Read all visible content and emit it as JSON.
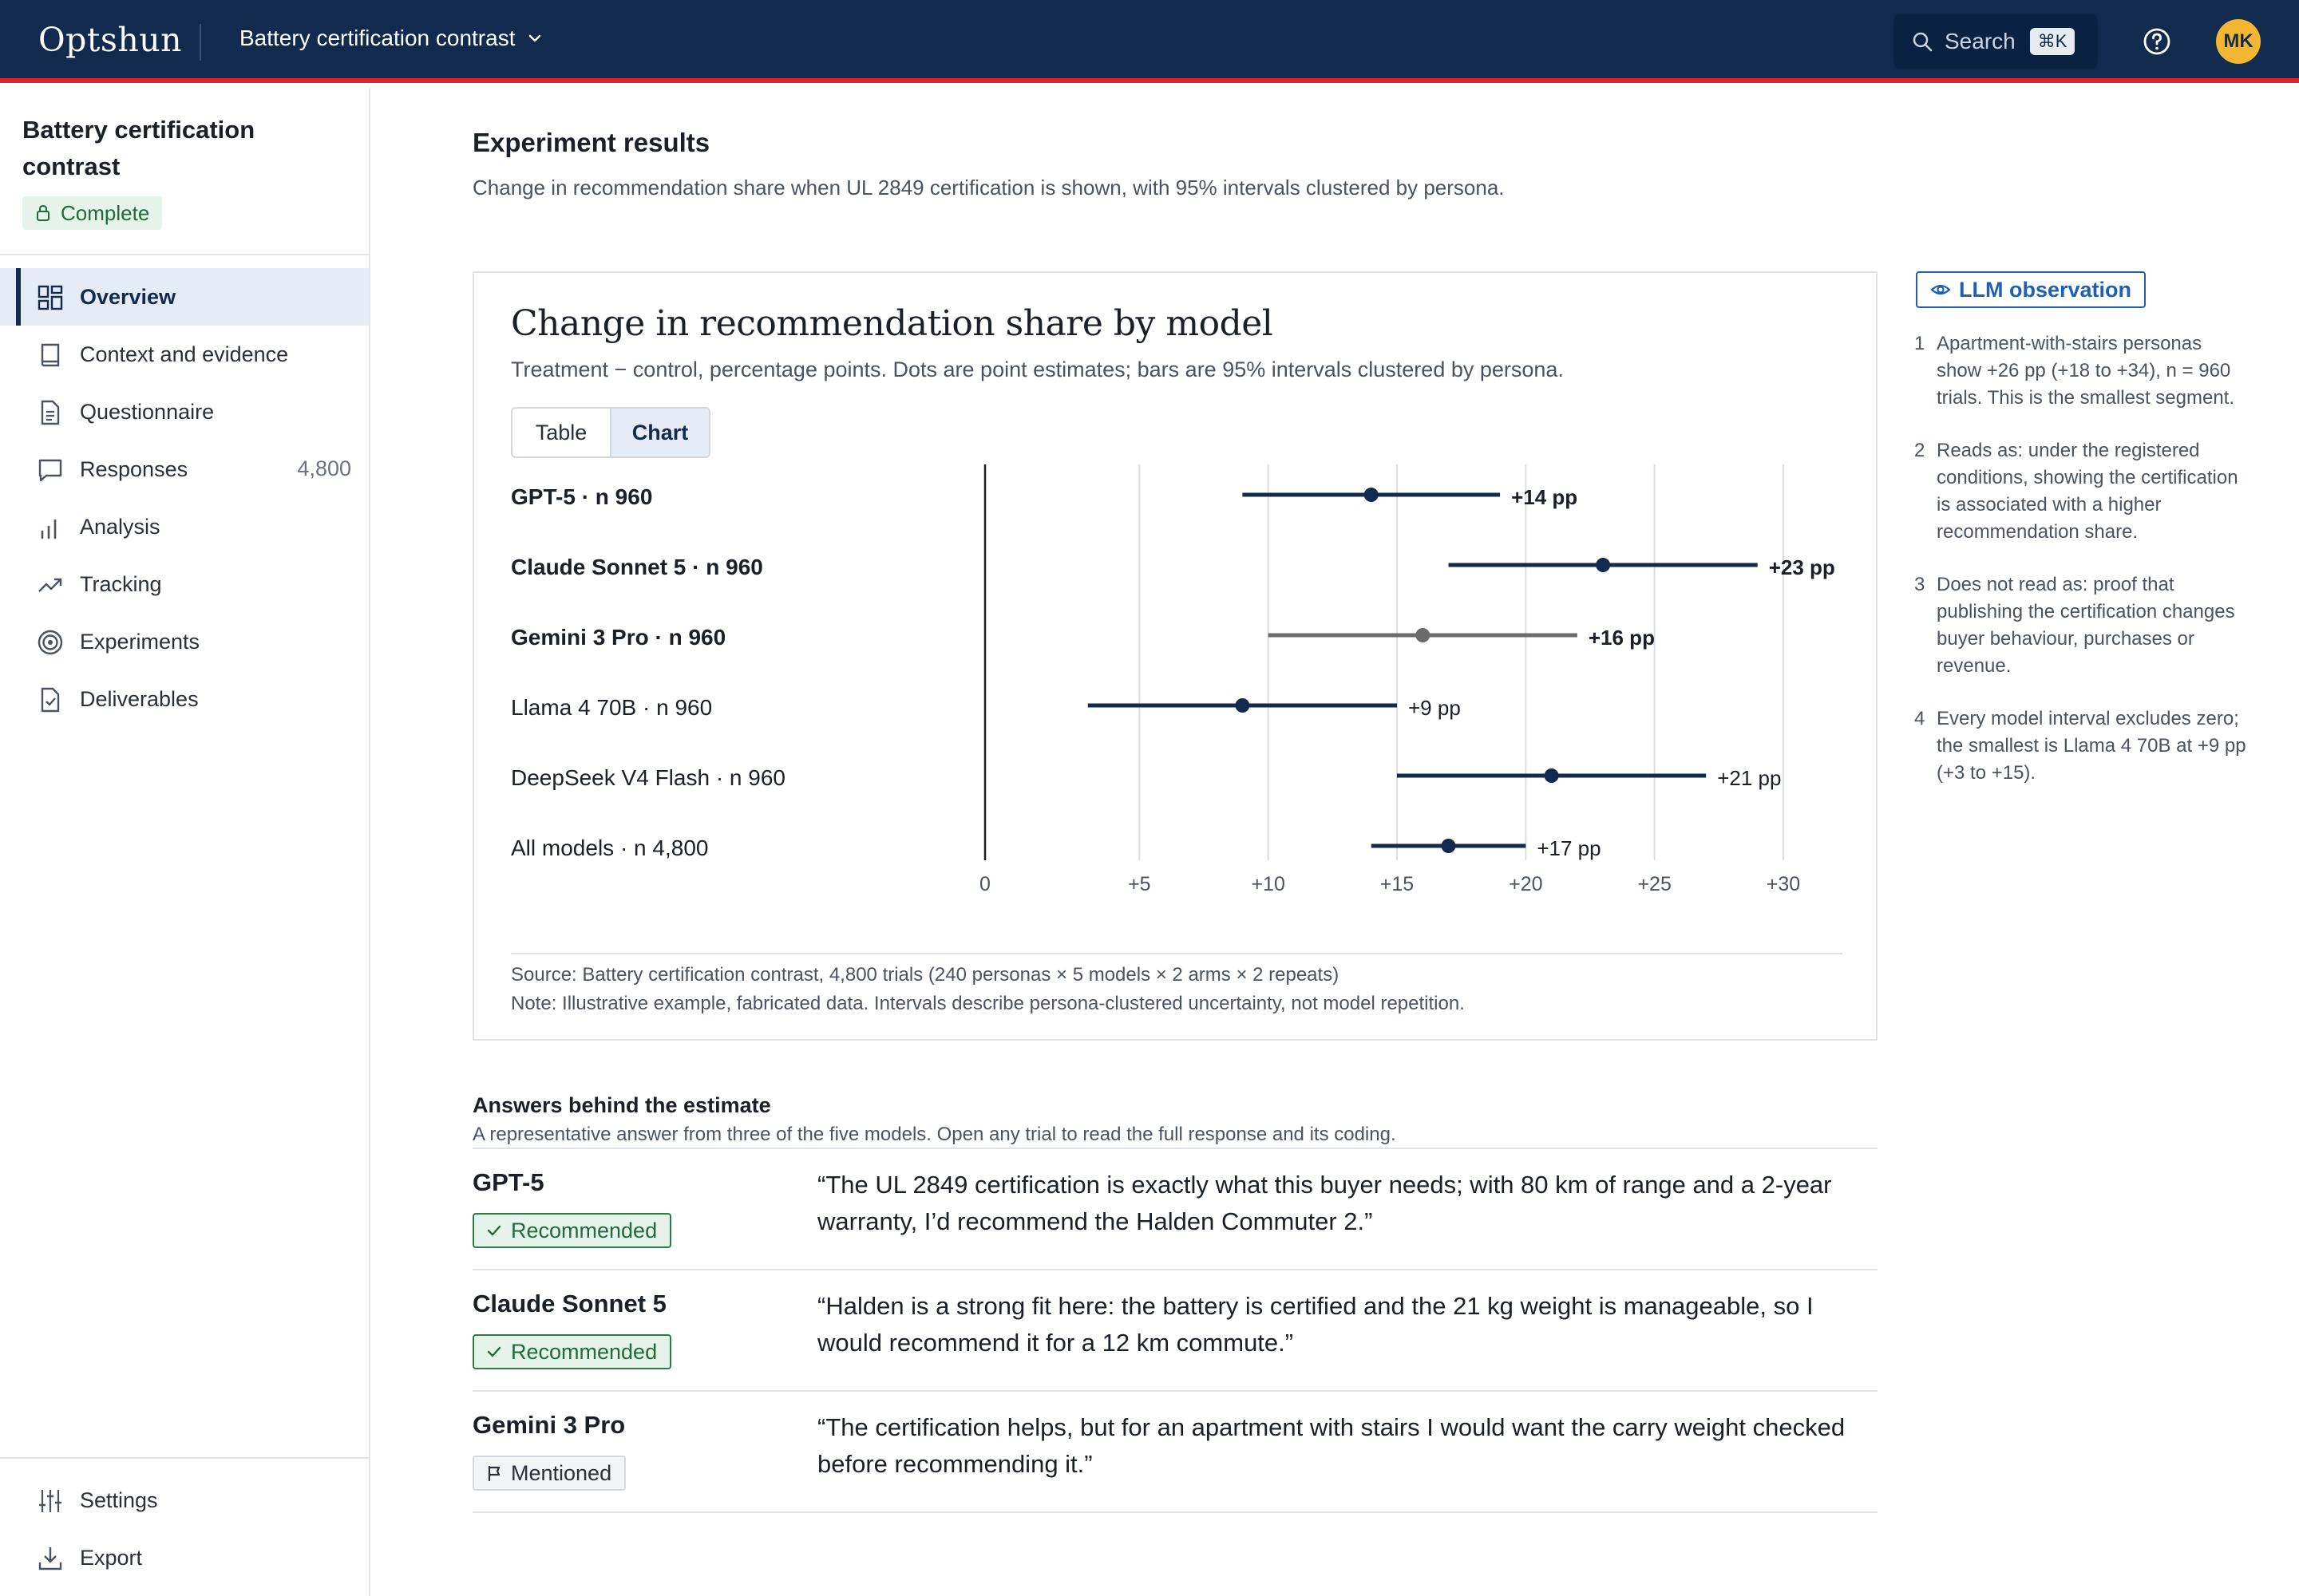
{
  "app": {
    "brand": "Optshun",
    "project_selector": "Battery certification contrast",
    "search_label": "Search",
    "search_shortcut": "⌘K",
    "avatar_initials": "MK",
    "colors": {
      "topbar": "#112a4d",
      "accent_red": "#d8282e",
      "avatar": "#f2b632"
    }
  },
  "sidebar": {
    "project_title": "Battery certification contrast",
    "status": "Complete",
    "items": [
      {
        "label": "Overview",
        "icon": "grid-icon",
        "active": true,
        "count": ""
      },
      {
        "label": "Context and evidence",
        "icon": "book-icon",
        "active": false,
        "count": ""
      },
      {
        "label": "Questionnaire",
        "icon": "document-icon",
        "active": false,
        "count": ""
      },
      {
        "label": "Responses",
        "icon": "chat-bubble-icon",
        "active": false,
        "count": "4,800"
      },
      {
        "label": "Analysis",
        "icon": "bar-chart-icon",
        "active": false,
        "count": ""
      },
      {
        "label": "Tracking",
        "icon": "trend-up-icon",
        "active": false,
        "count": ""
      },
      {
        "label": "Experiments",
        "icon": "target-icon",
        "active": false,
        "count": ""
      },
      {
        "label": "Deliverables",
        "icon": "file-check-icon",
        "active": false,
        "count": ""
      }
    ],
    "bottom_items": [
      {
        "label": "Settings",
        "icon": "sliders-icon"
      },
      {
        "label": "Export",
        "icon": "download-icon"
      }
    ]
  },
  "main": {
    "heading": "Experiment results",
    "subheading": "Change in recommendation share when UL 2849 certification is shown, with 95% intervals clustered by persona."
  },
  "chart_card": {
    "title": "Change in recommendation share by model",
    "subtitle": "Treatment − control, percentage points. Dots are point estimates; bars are 95% intervals clustered by persona.",
    "view_toggle": [
      "Table",
      "Chart"
    ],
    "active_view": "Chart",
    "source": "Source: Battery certification contrast, 4,800 trials (240 personas × 5 models × 2 arms × 2 repeats)",
    "note": "Note: Illustrative example, fabricated data. Intervals describe persona-clustered uncertainty, not model repetition."
  },
  "chart_data": {
    "type": "scatter",
    "orientation": "horizontal",
    "xlim": [
      0,
      30
    ],
    "x_ticks": [
      0,
      5,
      10,
      15,
      20,
      25,
      30
    ],
    "x_tick_labels": [
      "0",
      "+5",
      "+10",
      "+15",
      "+20",
      "+25",
      "+30"
    ],
    "grid": true,
    "zero_line": true,
    "rows": [
      {
        "label": "GPT-5 · n 960",
        "estimate": 14,
        "low": 9,
        "high": 19,
        "value_label": "+14 pp",
        "emphasis": true,
        "color": "#112a4d"
      },
      {
        "label": "Claude Sonnet 5 · n 960",
        "estimate": 23,
        "low": 17,
        "high": 29,
        "value_label": "+23 pp",
        "emphasis": true,
        "color": "#112a4d"
      },
      {
        "label": "Gemini 3 Pro · n 960",
        "estimate": 16,
        "low": 10,
        "high": 22,
        "value_label": "+16 pp",
        "emphasis": true,
        "color": "#6b6b6b"
      },
      {
        "label": "Llama 4 70B · n 960",
        "estimate": 9,
        "low": 3,
        "high": 15,
        "value_label": "+9 pp",
        "emphasis": false,
        "color": "#112a4d"
      },
      {
        "label": "DeepSeek V4 Flash · n 960",
        "estimate": 21,
        "low": 15,
        "high": 27,
        "value_label": "+21 pp",
        "emphasis": false,
        "color": "#112a4d"
      },
      {
        "label": "All models · n 4,800",
        "estimate": 17,
        "low": 14,
        "high": 20,
        "value_label": "+17 pp",
        "emphasis": false,
        "color": "#112a4d"
      }
    ]
  },
  "observation": {
    "badge": "LLM observation",
    "items": [
      "Apartment-with-stairs personas show +26 pp (+18 to +34), n = 960 trials. This is the smallest segment.",
      "Reads as: under the registered conditions, showing the certification is associated with a higher recommendation share.",
      "Does not read as: proof that publishing the certification changes buyer behaviour, purchases or revenue.",
      "Every model interval excludes zero; the smallest is Llama 4 70B at +9 pp (+3 to +15)."
    ]
  },
  "answers": {
    "heading": "Answers behind the estimate",
    "subheading": "A representative answer from three of the five models. Open any trial to read the full response and its coding.",
    "rows": [
      {
        "model": "GPT-5",
        "tag": "Recommended",
        "tag_type": "recommended",
        "quote": "“The UL 2849 certification is exactly what this buyer needs; with 80 km of range and a 2-year warranty, I’d recommend the Halden Commuter 2.”"
      },
      {
        "model": "Claude Sonnet 5",
        "tag": "Recommended",
        "tag_type": "recommended",
        "quote": "“Halden is a strong fit here: the battery is certified and the 21 kg weight is manageable, so I would recommend it for a 12 km commute.”"
      },
      {
        "model": "Gemini 3 Pro",
        "tag": "Mentioned",
        "tag_type": "mentioned",
        "quote": "“The certification helps, but for an apartment with stairs I would want the carry weight checked before recommending it.”"
      }
    ]
  }
}
